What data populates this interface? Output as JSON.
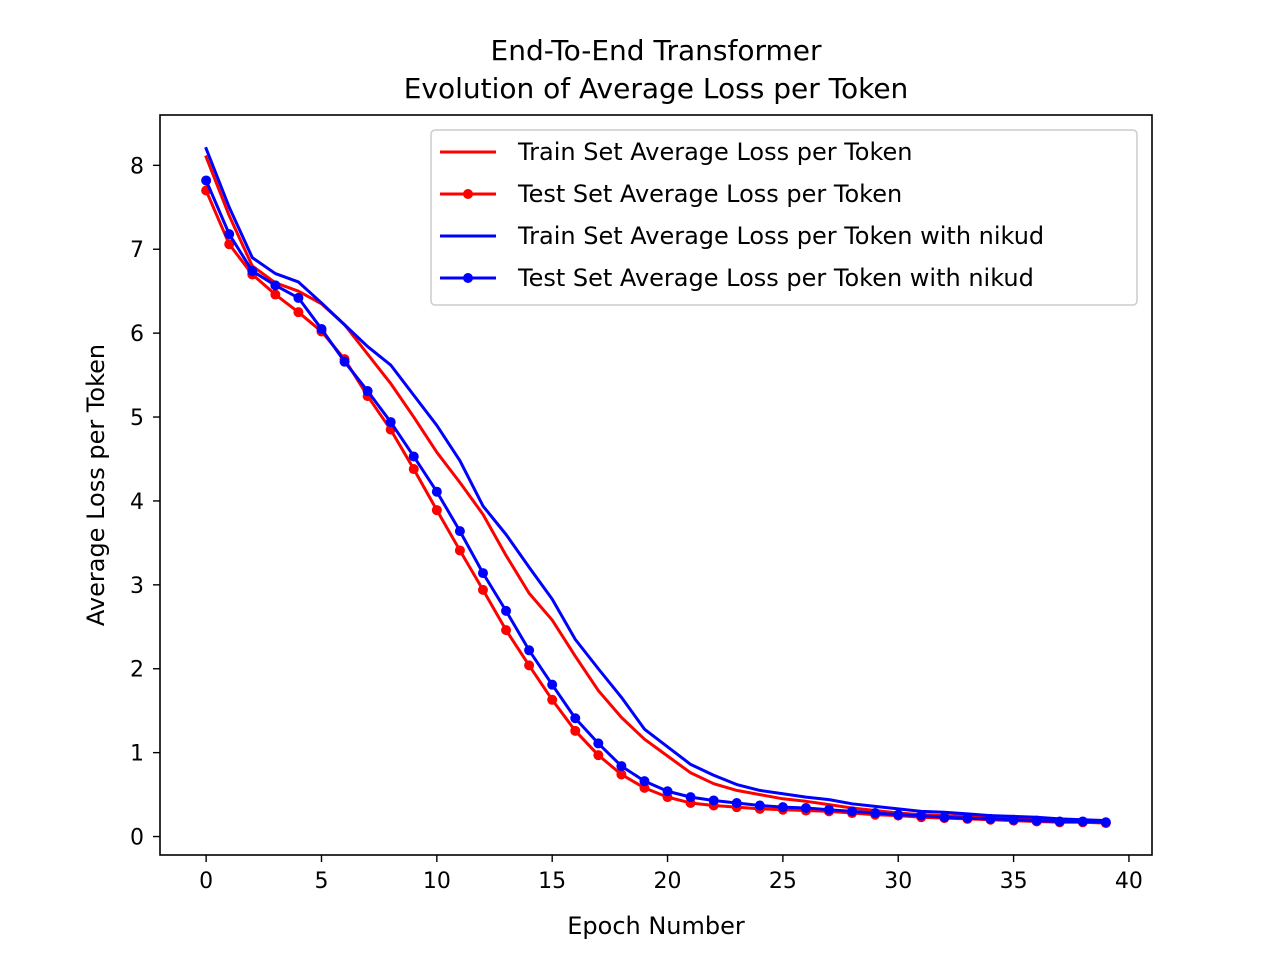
{
  "chart_data": {
    "type": "line",
    "title": [
      "End-To-End Transformer",
      "Evolution of Average Loss per Token"
    ],
    "xlabel": "Epoch Number",
    "ylabel": "Average Loss per Token",
    "xlim": [
      -2,
      41
    ],
    "ylim": [
      -0.22,
      8.6
    ],
    "xticks": [
      0,
      5,
      10,
      15,
      20,
      25,
      30,
      35,
      40
    ],
    "yticks": [
      0,
      1,
      2,
      3,
      4,
      5,
      6,
      7,
      8
    ],
    "grid": false,
    "legend_position": "top-right",
    "x": [
      0,
      1,
      2,
      3,
      4,
      5,
      6,
      7,
      8,
      9,
      10,
      11,
      12,
      13,
      14,
      15,
      16,
      17,
      18,
      19,
      20,
      21,
      22,
      23,
      24,
      25,
      26,
      27,
      28,
      29,
      30,
      31,
      32,
      33,
      34,
      35,
      36,
      37,
      38,
      39
    ],
    "series": [
      {
        "name": "Train Set Average Loss per Token",
        "color": "#ff0000",
        "marker": false,
        "values": [
          8.1,
          7.4,
          6.8,
          6.6,
          6.5,
          6.35,
          6.1,
          5.75,
          5.4,
          5.0,
          4.58,
          4.22,
          3.84,
          3.35,
          2.9,
          2.58,
          2.15,
          1.74,
          1.42,
          1.16,
          0.96,
          0.76,
          0.63,
          0.55,
          0.5,
          0.45,
          0.42,
          0.38,
          0.34,
          0.31,
          0.28,
          0.26,
          0.25,
          0.24,
          0.23,
          0.22,
          0.21,
          0.2,
          0.19,
          0.18
        ]
      },
      {
        "name": "Test Set Average Loss per Token",
        "color": "#ff0000",
        "marker": true,
        "values": [
          7.7,
          7.06,
          6.7,
          6.46,
          6.25,
          6.02,
          5.69,
          5.25,
          4.85,
          4.38,
          3.89,
          3.41,
          2.94,
          2.46,
          2.04,
          1.63,
          1.26,
          0.97,
          0.74,
          0.58,
          0.47,
          0.4,
          0.37,
          0.35,
          0.33,
          0.32,
          0.31,
          0.3,
          0.28,
          0.26,
          0.25,
          0.23,
          0.22,
          0.21,
          0.2,
          0.19,
          0.18,
          0.17,
          0.17,
          0.16
        ]
      },
      {
        "name": "Train Set Average Loss per Token with nikud",
        "color": "#0000ff",
        "marker": false,
        "values": [
          8.2,
          7.5,
          6.9,
          6.71,
          6.61,
          6.36,
          6.1,
          5.84,
          5.62,
          5.26,
          4.9,
          4.48,
          3.94,
          3.6,
          3.21,
          2.83,
          2.35,
          2.0,
          1.66,
          1.28,
          1.07,
          0.86,
          0.73,
          0.62,
          0.55,
          0.51,
          0.47,
          0.44,
          0.39,
          0.36,
          0.33,
          0.3,
          0.29,
          0.27,
          0.25,
          0.24,
          0.23,
          0.21,
          0.2,
          0.19
        ]
      },
      {
        "name": "Test Set Average Loss per Token with nikud",
        "color": "#0000ff",
        "marker": true,
        "values": [
          7.82,
          7.18,
          6.74,
          6.57,
          6.42,
          6.05,
          5.66,
          5.31,
          4.94,
          4.53,
          4.11,
          3.64,
          3.14,
          2.69,
          2.22,
          1.81,
          1.41,
          1.11,
          0.84,
          0.66,
          0.54,
          0.47,
          0.43,
          0.4,
          0.37,
          0.35,
          0.34,
          0.32,
          0.3,
          0.28,
          0.26,
          0.25,
          0.23,
          0.22,
          0.21,
          0.2,
          0.19,
          0.18,
          0.18,
          0.17
        ]
      }
    ]
  }
}
